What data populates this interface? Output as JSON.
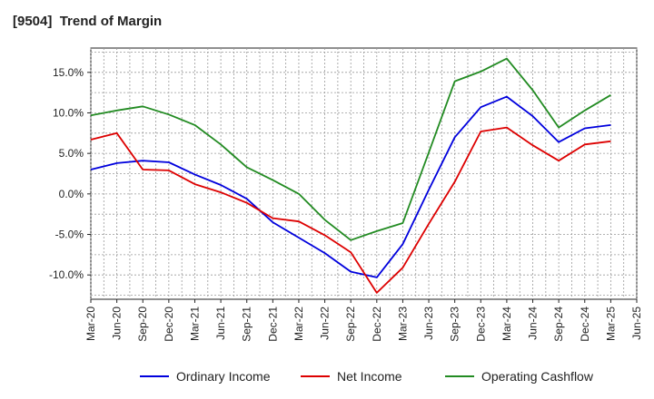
{
  "chart_data": {
    "type": "line",
    "title": "[9504]  Trend of Margin",
    "xlabel": "",
    "ylabel": "",
    "x": [
      "Mar-20",
      "Jun-20",
      "Sep-20",
      "Dec-20",
      "Mar-21",
      "Jun-21",
      "Sep-21",
      "Dec-21",
      "Mar-22",
      "Jun-22",
      "Sep-22",
      "Dec-22",
      "Mar-23",
      "Jun-23",
      "Sep-23",
      "Dec-23",
      "Mar-24",
      "Jun-24",
      "Sep-24",
      "Dec-24",
      "Mar-25",
      "Jun-25"
    ],
    "y_ticks": [
      15.0,
      10.0,
      5.0,
      0.0,
      -5.0,
      -10.0
    ],
    "y_tick_labels": [
      "15.0%",
      "10.0%",
      "5.0%",
      "0.0%",
      "-5.0%",
      "-10.0%"
    ],
    "ylim": [
      -13.0,
      18.0
    ],
    "grid": true,
    "legend_position": "bottom",
    "series": [
      {
        "name": "Ordinary Income",
        "color": "#0000dd",
        "values": [
          3.0,
          3.8,
          4.1,
          3.9,
          2.4,
          1.1,
          -0.6,
          -3.5,
          -5.4,
          -7.3,
          -9.6,
          -10.3,
          -6.2,
          0.5,
          7.0,
          10.7,
          12.0,
          9.6,
          6.4,
          8.1,
          8.5,
          null
        ]
      },
      {
        "name": "Net Income",
        "color": "#dd0000",
        "values": [
          6.7,
          7.5,
          3.0,
          2.9,
          1.2,
          0.2,
          -1.1,
          -3.0,
          -3.4,
          -5.1,
          -7.2,
          -12.2,
          -9.1,
          -3.7,
          1.5,
          7.7,
          8.2,
          6.0,
          4.1,
          6.1,
          6.5,
          null
        ]
      },
      {
        "name": "Operating Cashflow",
        "color": "#228b22",
        "values": [
          9.7,
          10.3,
          10.8,
          9.8,
          8.5,
          6.1,
          3.3,
          1.7,
          0.0,
          -3.2,
          -5.7,
          -4.6,
          -3.6,
          5.1,
          13.9,
          15.1,
          16.7,
          12.8,
          8.2,
          10.3,
          12.2,
          null
        ]
      }
    ]
  }
}
